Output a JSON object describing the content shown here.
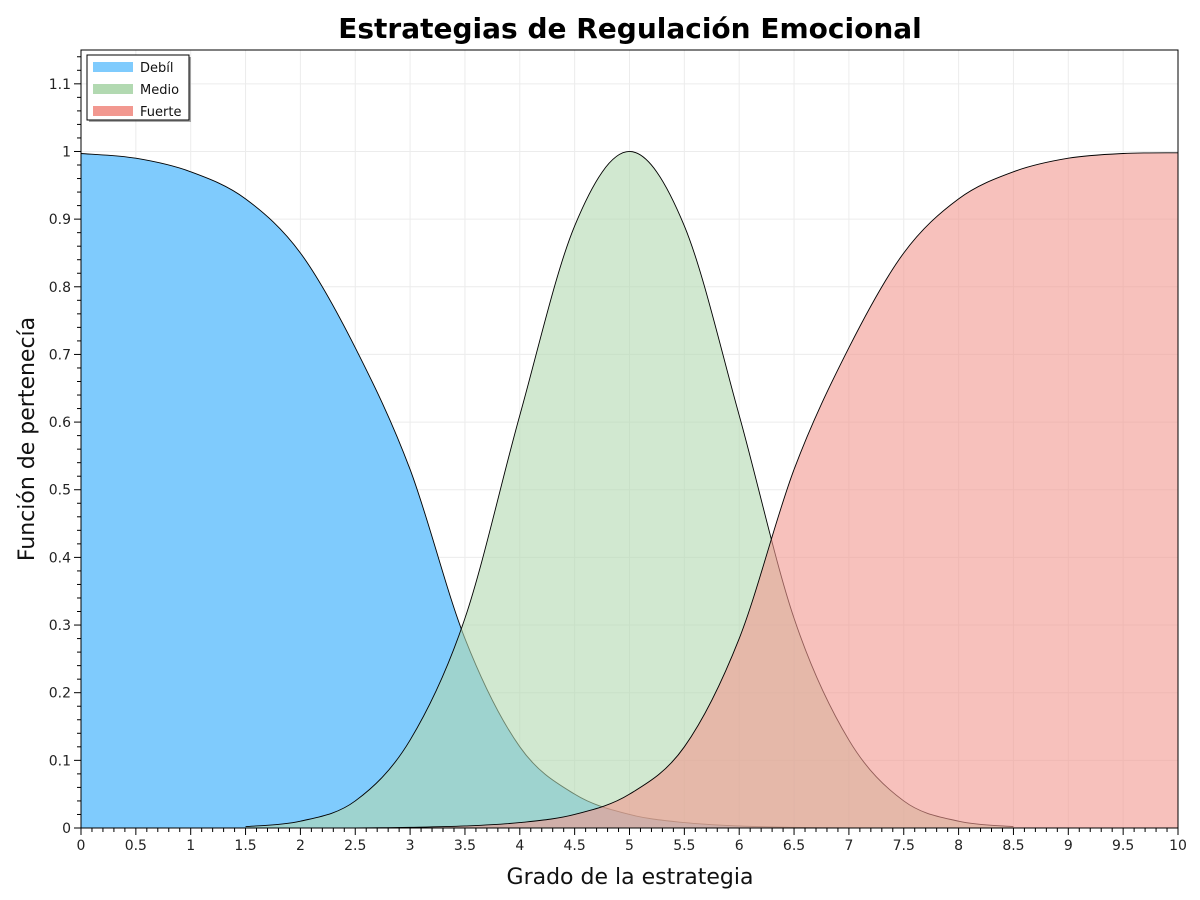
{
  "chart_data": {
    "type": "area",
    "title": "Estrategias de Regulación Emocional",
    "xlabel": "Grado de la estrategia",
    "ylabel": "Función de pertenecía",
    "xlim": [
      0,
      10
    ],
    "ylim": [
      0,
      1.15
    ],
    "x_major_ticks": [
      "0",
      "0.5",
      "1",
      "1.5",
      "2",
      "2.5",
      "3",
      "3.5",
      "4",
      "4.5",
      "5",
      "5.5",
      "6",
      "6.5",
      "7",
      "7.5",
      "8",
      "8.5",
      "9",
      "9.5",
      "10"
    ],
    "y_major_ticks": [
      "0",
      "0.1",
      "0.2",
      "0.3",
      "0.4",
      "0.5",
      "0.6",
      "0.7",
      "0.8",
      "0.9",
      "1",
      "1.1"
    ],
    "grid": true,
    "legend_position": "top-left",
    "series": [
      {
        "name": "Debíl",
        "color": "#7fcbfd",
        "x": [
          0,
          0.5,
          1,
          1.5,
          2,
          2.5,
          3,
          3.5,
          4,
          4.5,
          5,
          5.5,
          6,
          6.5,
          7,
          7.5,
          8,
          8.5,
          9,
          9.5,
          10
        ],
        "y": [
          0.997,
          0.99,
          0.97,
          0.93,
          0.85,
          0.71,
          0.53,
          0.28,
          0.12,
          0.05,
          0.02,
          0.008,
          0.003,
          0.001,
          0,
          0,
          0,
          0,
          0,
          0,
          0
        ]
      },
      {
        "name": "Medio",
        "color": "#b2d9b1",
        "x": [
          1.5,
          2,
          2.5,
          3,
          3.5,
          4,
          4.5,
          5,
          5.5,
          6,
          6.5,
          7,
          7.5,
          8,
          8.5
        ],
        "y": [
          0.002,
          0.01,
          0.04,
          0.13,
          0.31,
          0.61,
          0.89,
          1.0,
          0.89,
          0.61,
          0.31,
          0.13,
          0.04,
          0.01,
          0.002
        ]
      },
      {
        "name": "Fuerte",
        "color": "#f29890",
        "x": [
          0,
          0.5,
          1,
          1.5,
          2,
          2.5,
          3,
          3.5,
          4,
          4.5,
          5,
          5.5,
          6,
          6.5,
          7,
          7.5,
          8,
          8.5,
          9,
          9.5,
          10
        ],
        "y": [
          0,
          0,
          0,
          0,
          0,
          0,
          0.001,
          0.003,
          0.008,
          0.02,
          0.05,
          0.12,
          0.28,
          0.53,
          0.71,
          0.85,
          0.93,
          0.97,
          0.99,
          0.997,
          0.998
        ]
      }
    ]
  }
}
